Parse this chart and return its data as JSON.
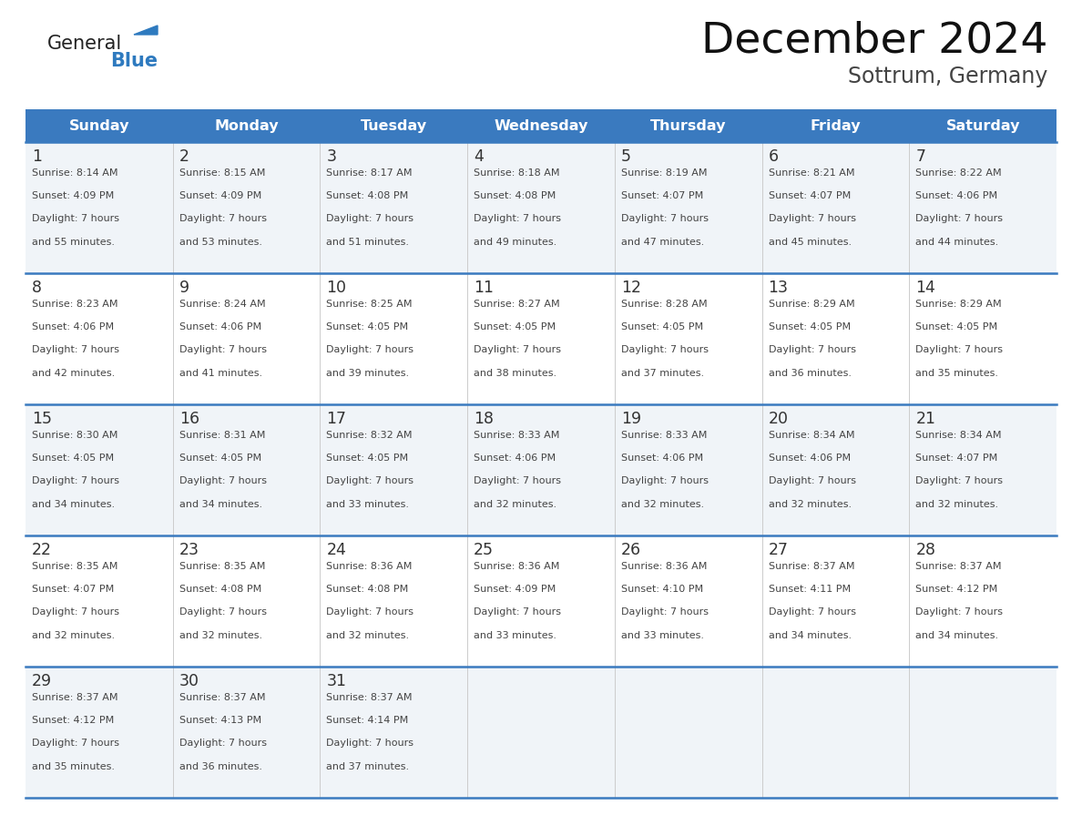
{
  "title": "December 2024",
  "subtitle": "Sottrum, Germany",
  "header_bg_color": "#3a7abf",
  "header_text_color": "#ffffff",
  "day_names": [
    "Sunday",
    "Monday",
    "Tuesday",
    "Wednesday",
    "Thursday",
    "Friday",
    "Saturday"
  ],
  "row_bg_colors": [
    "#f0f4f8",
    "#ffffff"
  ],
  "grid_line_color": "#3a7abf",
  "date_text_color": "#333333",
  "info_text_color": "#444444",
  "logo_general_color": "#222222",
  "logo_blue_color": "#2e7abf",
  "weeks": [
    [
      {
        "day": 1,
        "sunrise": "8:14 AM",
        "sunset": "4:09 PM",
        "daylight_mins": "55 minutes."
      },
      {
        "day": 2,
        "sunrise": "8:15 AM",
        "sunset": "4:09 PM",
        "daylight_mins": "53 minutes."
      },
      {
        "day": 3,
        "sunrise": "8:17 AM",
        "sunset": "4:08 PM",
        "daylight_mins": "51 minutes."
      },
      {
        "day": 4,
        "sunrise": "8:18 AM",
        "sunset": "4:08 PM",
        "daylight_mins": "49 minutes."
      },
      {
        "day": 5,
        "sunrise": "8:19 AM",
        "sunset": "4:07 PM",
        "daylight_mins": "47 minutes."
      },
      {
        "day": 6,
        "sunrise": "8:21 AM",
        "sunset": "4:07 PM",
        "daylight_mins": "45 minutes."
      },
      {
        "day": 7,
        "sunrise": "8:22 AM",
        "sunset": "4:06 PM",
        "daylight_mins": "44 minutes."
      }
    ],
    [
      {
        "day": 8,
        "sunrise": "8:23 AM",
        "sunset": "4:06 PM",
        "daylight_mins": "42 minutes."
      },
      {
        "day": 9,
        "sunrise": "8:24 AM",
        "sunset": "4:06 PM",
        "daylight_mins": "41 minutes."
      },
      {
        "day": 10,
        "sunrise": "8:25 AM",
        "sunset": "4:05 PM",
        "daylight_mins": "39 minutes."
      },
      {
        "day": 11,
        "sunrise": "8:27 AM",
        "sunset": "4:05 PM",
        "daylight_mins": "38 minutes."
      },
      {
        "day": 12,
        "sunrise": "8:28 AM",
        "sunset": "4:05 PM",
        "daylight_mins": "37 minutes."
      },
      {
        "day": 13,
        "sunrise": "8:29 AM",
        "sunset": "4:05 PM",
        "daylight_mins": "36 minutes."
      },
      {
        "day": 14,
        "sunrise": "8:29 AM",
        "sunset": "4:05 PM",
        "daylight_mins": "35 minutes."
      }
    ],
    [
      {
        "day": 15,
        "sunrise": "8:30 AM",
        "sunset": "4:05 PM",
        "daylight_mins": "34 minutes."
      },
      {
        "day": 16,
        "sunrise": "8:31 AM",
        "sunset": "4:05 PM",
        "daylight_mins": "34 minutes."
      },
      {
        "day": 17,
        "sunrise": "8:32 AM",
        "sunset": "4:05 PM",
        "daylight_mins": "33 minutes."
      },
      {
        "day": 18,
        "sunrise": "8:33 AM",
        "sunset": "4:06 PM",
        "daylight_mins": "32 minutes."
      },
      {
        "day": 19,
        "sunrise": "8:33 AM",
        "sunset": "4:06 PM",
        "daylight_mins": "32 minutes."
      },
      {
        "day": 20,
        "sunrise": "8:34 AM",
        "sunset": "4:06 PM",
        "daylight_mins": "32 minutes."
      },
      {
        "day": 21,
        "sunrise": "8:34 AM",
        "sunset": "4:07 PM",
        "daylight_mins": "32 minutes."
      }
    ],
    [
      {
        "day": 22,
        "sunrise": "8:35 AM",
        "sunset": "4:07 PM",
        "daylight_mins": "32 minutes."
      },
      {
        "day": 23,
        "sunrise": "8:35 AM",
        "sunset": "4:08 PM",
        "daylight_mins": "32 minutes."
      },
      {
        "day": 24,
        "sunrise": "8:36 AM",
        "sunset": "4:08 PM",
        "daylight_mins": "32 minutes."
      },
      {
        "day": 25,
        "sunrise": "8:36 AM",
        "sunset": "4:09 PM",
        "daylight_mins": "33 minutes."
      },
      {
        "day": 26,
        "sunrise": "8:36 AM",
        "sunset": "4:10 PM",
        "daylight_mins": "33 minutes."
      },
      {
        "day": 27,
        "sunrise": "8:37 AM",
        "sunset": "4:11 PM",
        "daylight_mins": "34 minutes."
      },
      {
        "day": 28,
        "sunrise": "8:37 AM",
        "sunset": "4:12 PM",
        "daylight_mins": "34 minutes."
      }
    ],
    [
      {
        "day": 29,
        "sunrise": "8:37 AM",
        "sunset": "4:12 PM",
        "daylight_mins": "35 minutes."
      },
      {
        "day": 30,
        "sunrise": "8:37 AM",
        "sunset": "4:13 PM",
        "daylight_mins": "36 minutes."
      },
      {
        "day": 31,
        "sunrise": "8:37 AM",
        "sunset": "4:14 PM",
        "daylight_mins": "37 minutes."
      },
      null,
      null,
      null,
      null
    ]
  ]
}
